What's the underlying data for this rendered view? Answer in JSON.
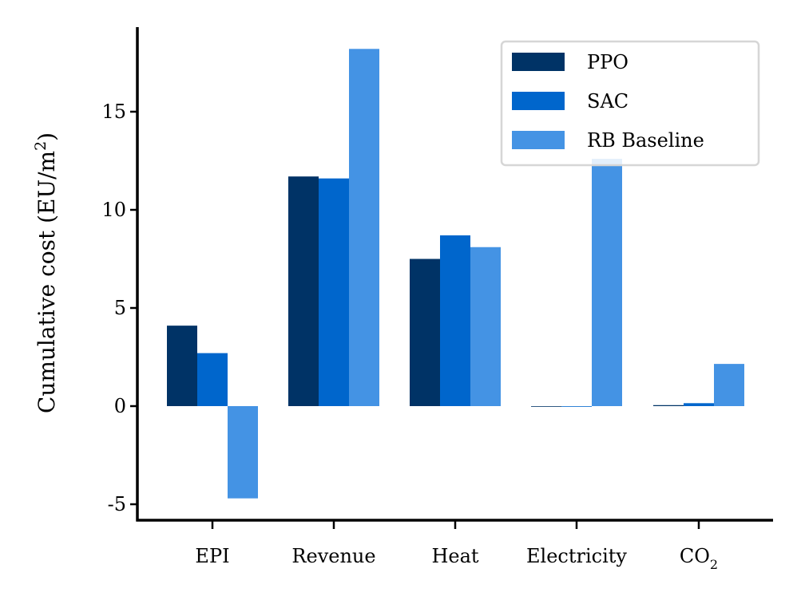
{
  "chart_data": {
    "type": "bar",
    "categories": [
      "EPI",
      "Revenue",
      "Heat",
      "Electricity",
      "CO2"
    ],
    "category_display": [
      {
        "main": "EPI",
        "sub": ""
      },
      {
        "main": "Revenue",
        "sub": ""
      },
      {
        "main": "Heat",
        "sub": ""
      },
      {
        "main": "Electricity",
        "sub": ""
      },
      {
        "main": "CO",
        "sub": "2"
      }
    ],
    "series": [
      {
        "name": "PPO",
        "color": "#003366",
        "values": [
          4.1,
          11.7,
          7.5,
          0.0,
          0.05
        ]
      },
      {
        "name": "SAC",
        "color": "#0066cc",
        "values": [
          2.7,
          11.6,
          8.7,
          0.0,
          0.15
        ]
      },
      {
        "name": "RB Baseline",
        "color": "#4493e4",
        "values": [
          -4.7,
          18.2,
          8.1,
          12.6,
          2.15
        ]
      }
    ],
    "ylabel_main": "Cumulative cost (EU/m",
    "ylabel_sup": "2",
    "ylabel_end": ")",
    "ylim": [
      -5.8,
      19.2
    ],
    "yticks": [
      -5,
      0,
      5,
      10,
      15
    ],
    "ytick_labels": [
      "-5",
      "0",
      "5",
      "10",
      "15"
    ],
    "legend_position": "top-right",
    "grid": false
  }
}
